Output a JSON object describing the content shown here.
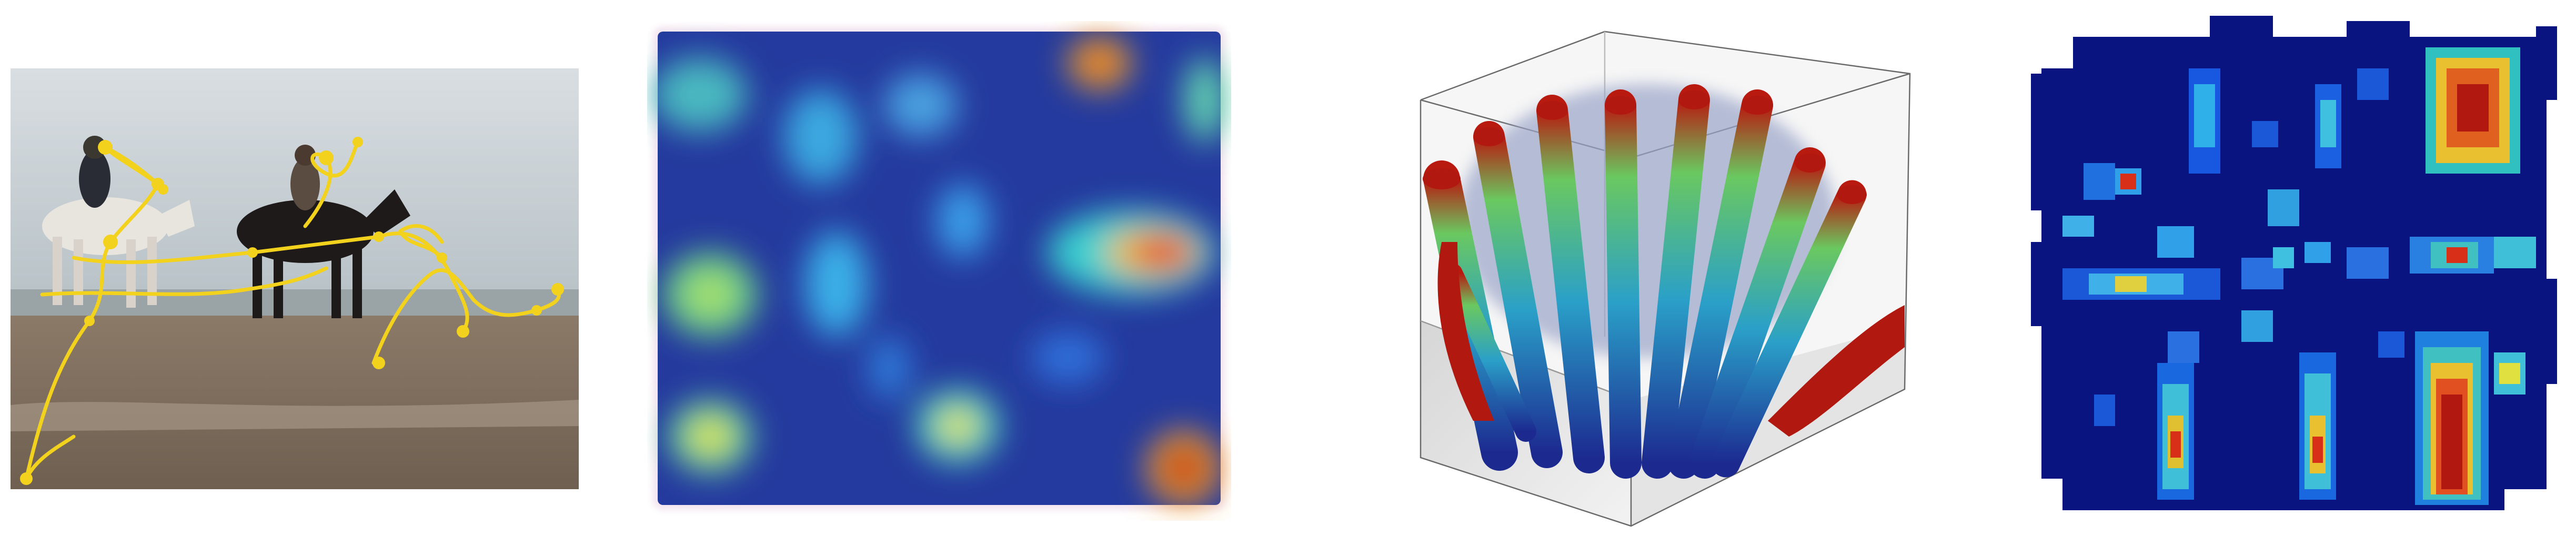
{
  "figure": {
    "panels": [
      {
        "id": "photo-gaze",
        "content": "beach-riders-photo-with-gaze-trajectory",
        "trajectory_color": "#f2d21c"
      },
      {
        "id": "smooth-heatmap",
        "content": "smooth-2d-heatmap",
        "colormap": "jet"
      },
      {
        "id": "volume-render",
        "content": "3d-volume-rendering-in-box",
        "colormap": "jet"
      },
      {
        "id": "blocky-heatmap",
        "content": "pixelated-2d-heatmap",
        "colormap": "jet"
      }
    ],
    "colors": {
      "jet_low": "#0a1a8c",
      "jet_mid": "#3ccfe0",
      "jet_high": "#e0201a",
      "sand": "#8c7a68",
      "sea": "#c4cdd2",
      "gaze": "#f2d21c"
    }
  }
}
